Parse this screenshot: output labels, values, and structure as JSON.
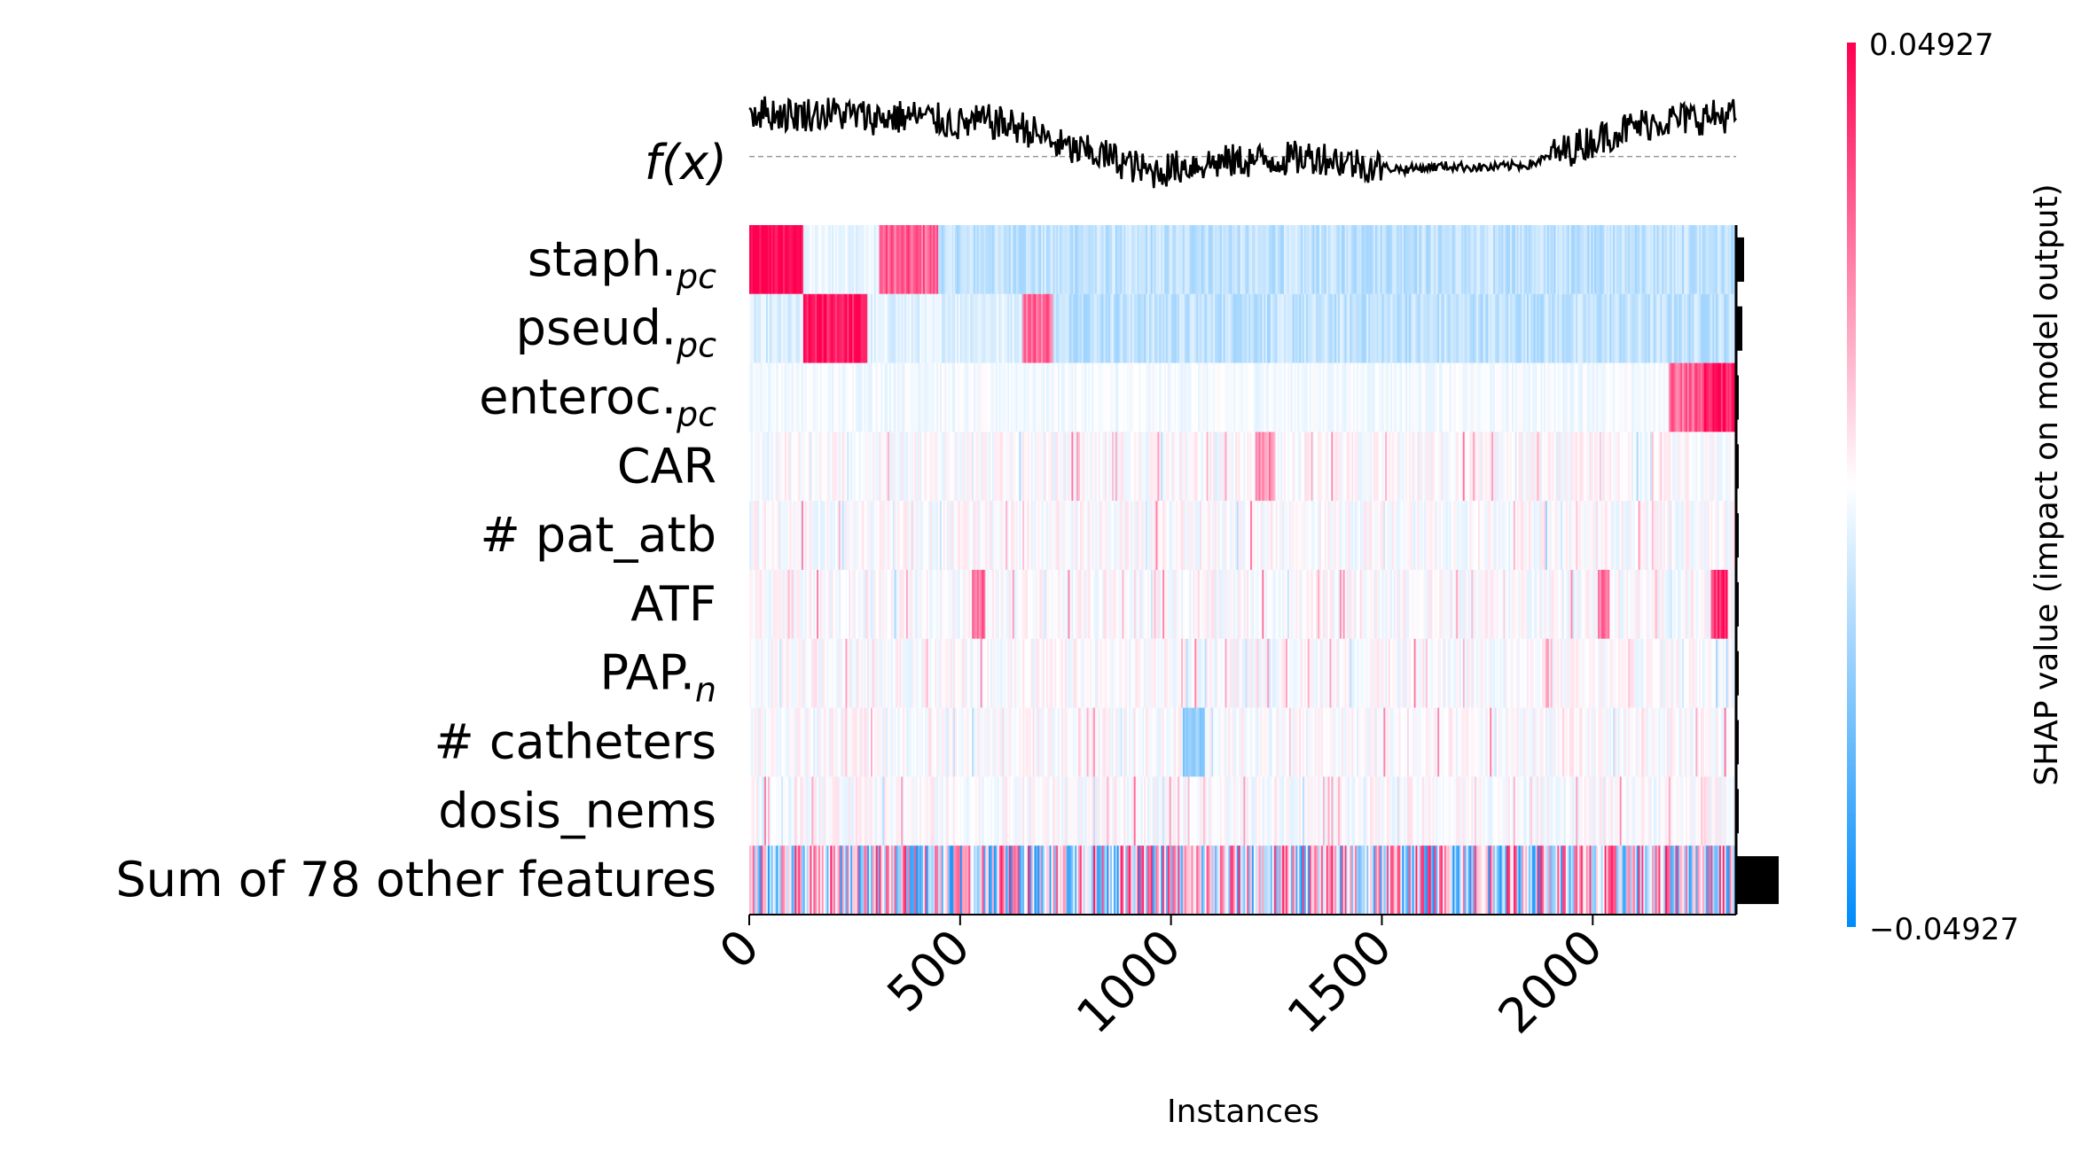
{
  "chart_data": {
    "type": "heatmap",
    "title": "",
    "xlabel": "Instances",
    "ylabel": "",
    "fx_label": "f(x)",
    "xlim": [
      0,
      2340
    ],
    "x_ticks": [
      0,
      500,
      1000,
      1500,
      2000
    ],
    "n_instances": 2340,
    "features": [
      {
        "name": "staph.",
        "subscript": "pc",
        "importance": 0.0045
      },
      {
        "name": "pseud.",
        "subscript": "pc",
        "importance": 0.0035
      },
      {
        "name": "enteroc.",
        "subscript": "pc",
        "importance": 0.0008
      },
      {
        "name": "CAR",
        "subscript": "",
        "importance": 0.0006
      },
      {
        "name": "# pat_atb",
        "subscript": "",
        "importance": 0.0006
      },
      {
        "name": "ATF",
        "subscript": "",
        "importance": 0.0005
      },
      {
        "name": "PAP.",
        "subscript": "n",
        "importance": 0.0005
      },
      {
        "name": "# catheters",
        "subscript": "",
        "importance": 0.0004
      },
      {
        "name": "dosis_nems",
        "subscript": "",
        "importance": 0.0003
      },
      {
        "name": "Sum of 78 other features",
        "subscript": "",
        "importance": 0.024
      }
    ],
    "colorbar": {
      "label": "SHAP value (impact on model output)",
      "max_label": "0.04927",
      "min_label": "−0.04927",
      "vmin": -0.04927,
      "vmax": 0.04927,
      "color_low": "#008bfb",
      "color_mid": "#ffffff",
      "color_high": "#ff0051"
    },
    "segments": [
      {
        "feature": 0,
        "start": 0,
        "end": 130,
        "value": 0.049
      },
      {
        "feature": 0,
        "start": 130,
        "end": 310,
        "value": -0.004
      },
      {
        "feature": 0,
        "start": 310,
        "end": 450,
        "value": 0.03
      },
      {
        "feature": 0,
        "start": 450,
        "end": 2340,
        "value": -0.012
      },
      {
        "feature": 1,
        "start": 0,
        "end": 130,
        "value": -0.008
      },
      {
        "feature": 1,
        "start": 130,
        "end": 280,
        "value": 0.045
      },
      {
        "feature": 1,
        "start": 280,
        "end": 650,
        "value": -0.006
      },
      {
        "feature": 1,
        "start": 650,
        "end": 720,
        "value": 0.03
      },
      {
        "feature": 1,
        "start": 720,
        "end": 2340,
        "value": -0.012
      },
      {
        "feature": 2,
        "start": 0,
        "end": 2180,
        "value": -0.002
      },
      {
        "feature": 2,
        "start": 2180,
        "end": 2260,
        "value": 0.03
      },
      {
        "feature": 2,
        "start": 2260,
        "end": 2340,
        "value": 0.045
      },
      {
        "feature": 3,
        "start": 1200,
        "end": 1250,
        "value": 0.02
      },
      {
        "feature": 5,
        "start": 530,
        "end": 560,
        "value": 0.03
      },
      {
        "feature": 5,
        "start": 2010,
        "end": 2040,
        "value": 0.025
      },
      {
        "feature": 5,
        "start": 2280,
        "end": 2320,
        "value": 0.04
      },
      {
        "feature": 7,
        "start": 1030,
        "end": 1080,
        "value": -0.02
      }
    ],
    "fx_series": {
      "baseline": 0.0,
      "ylim": [
        -0.35,
        0.45
      ],
      "knots": [
        [
          0,
          0.28
        ],
        [
          100,
          0.26
        ],
        [
          200,
          0.27
        ],
        [
          300,
          0.24
        ],
        [
          400,
          0.25
        ],
        [
          500,
          0.2
        ],
        [
          560,
          0.22
        ],
        [
          650,
          0.18
        ],
        [
          750,
          0.05
        ],
        [
          850,
          0.0
        ],
        [
          950,
          -0.1
        ],
        [
          1050,
          -0.05
        ],
        [
          1150,
          -0.03
        ],
        [
          1250,
          -0.02
        ],
        [
          1350,
          0.0
        ],
        [
          1450,
          -0.05
        ],
        [
          1550,
          -0.08
        ],
        [
          1650,
          -0.06
        ],
        [
          1750,
          -0.07
        ],
        [
          1850,
          -0.05
        ],
        [
          1950,
          0.05
        ],
        [
          2050,
          0.15
        ],
        [
          2150,
          0.22
        ],
        [
          2250,
          0.24
        ],
        [
          2340,
          0.26
        ]
      ]
    }
  }
}
